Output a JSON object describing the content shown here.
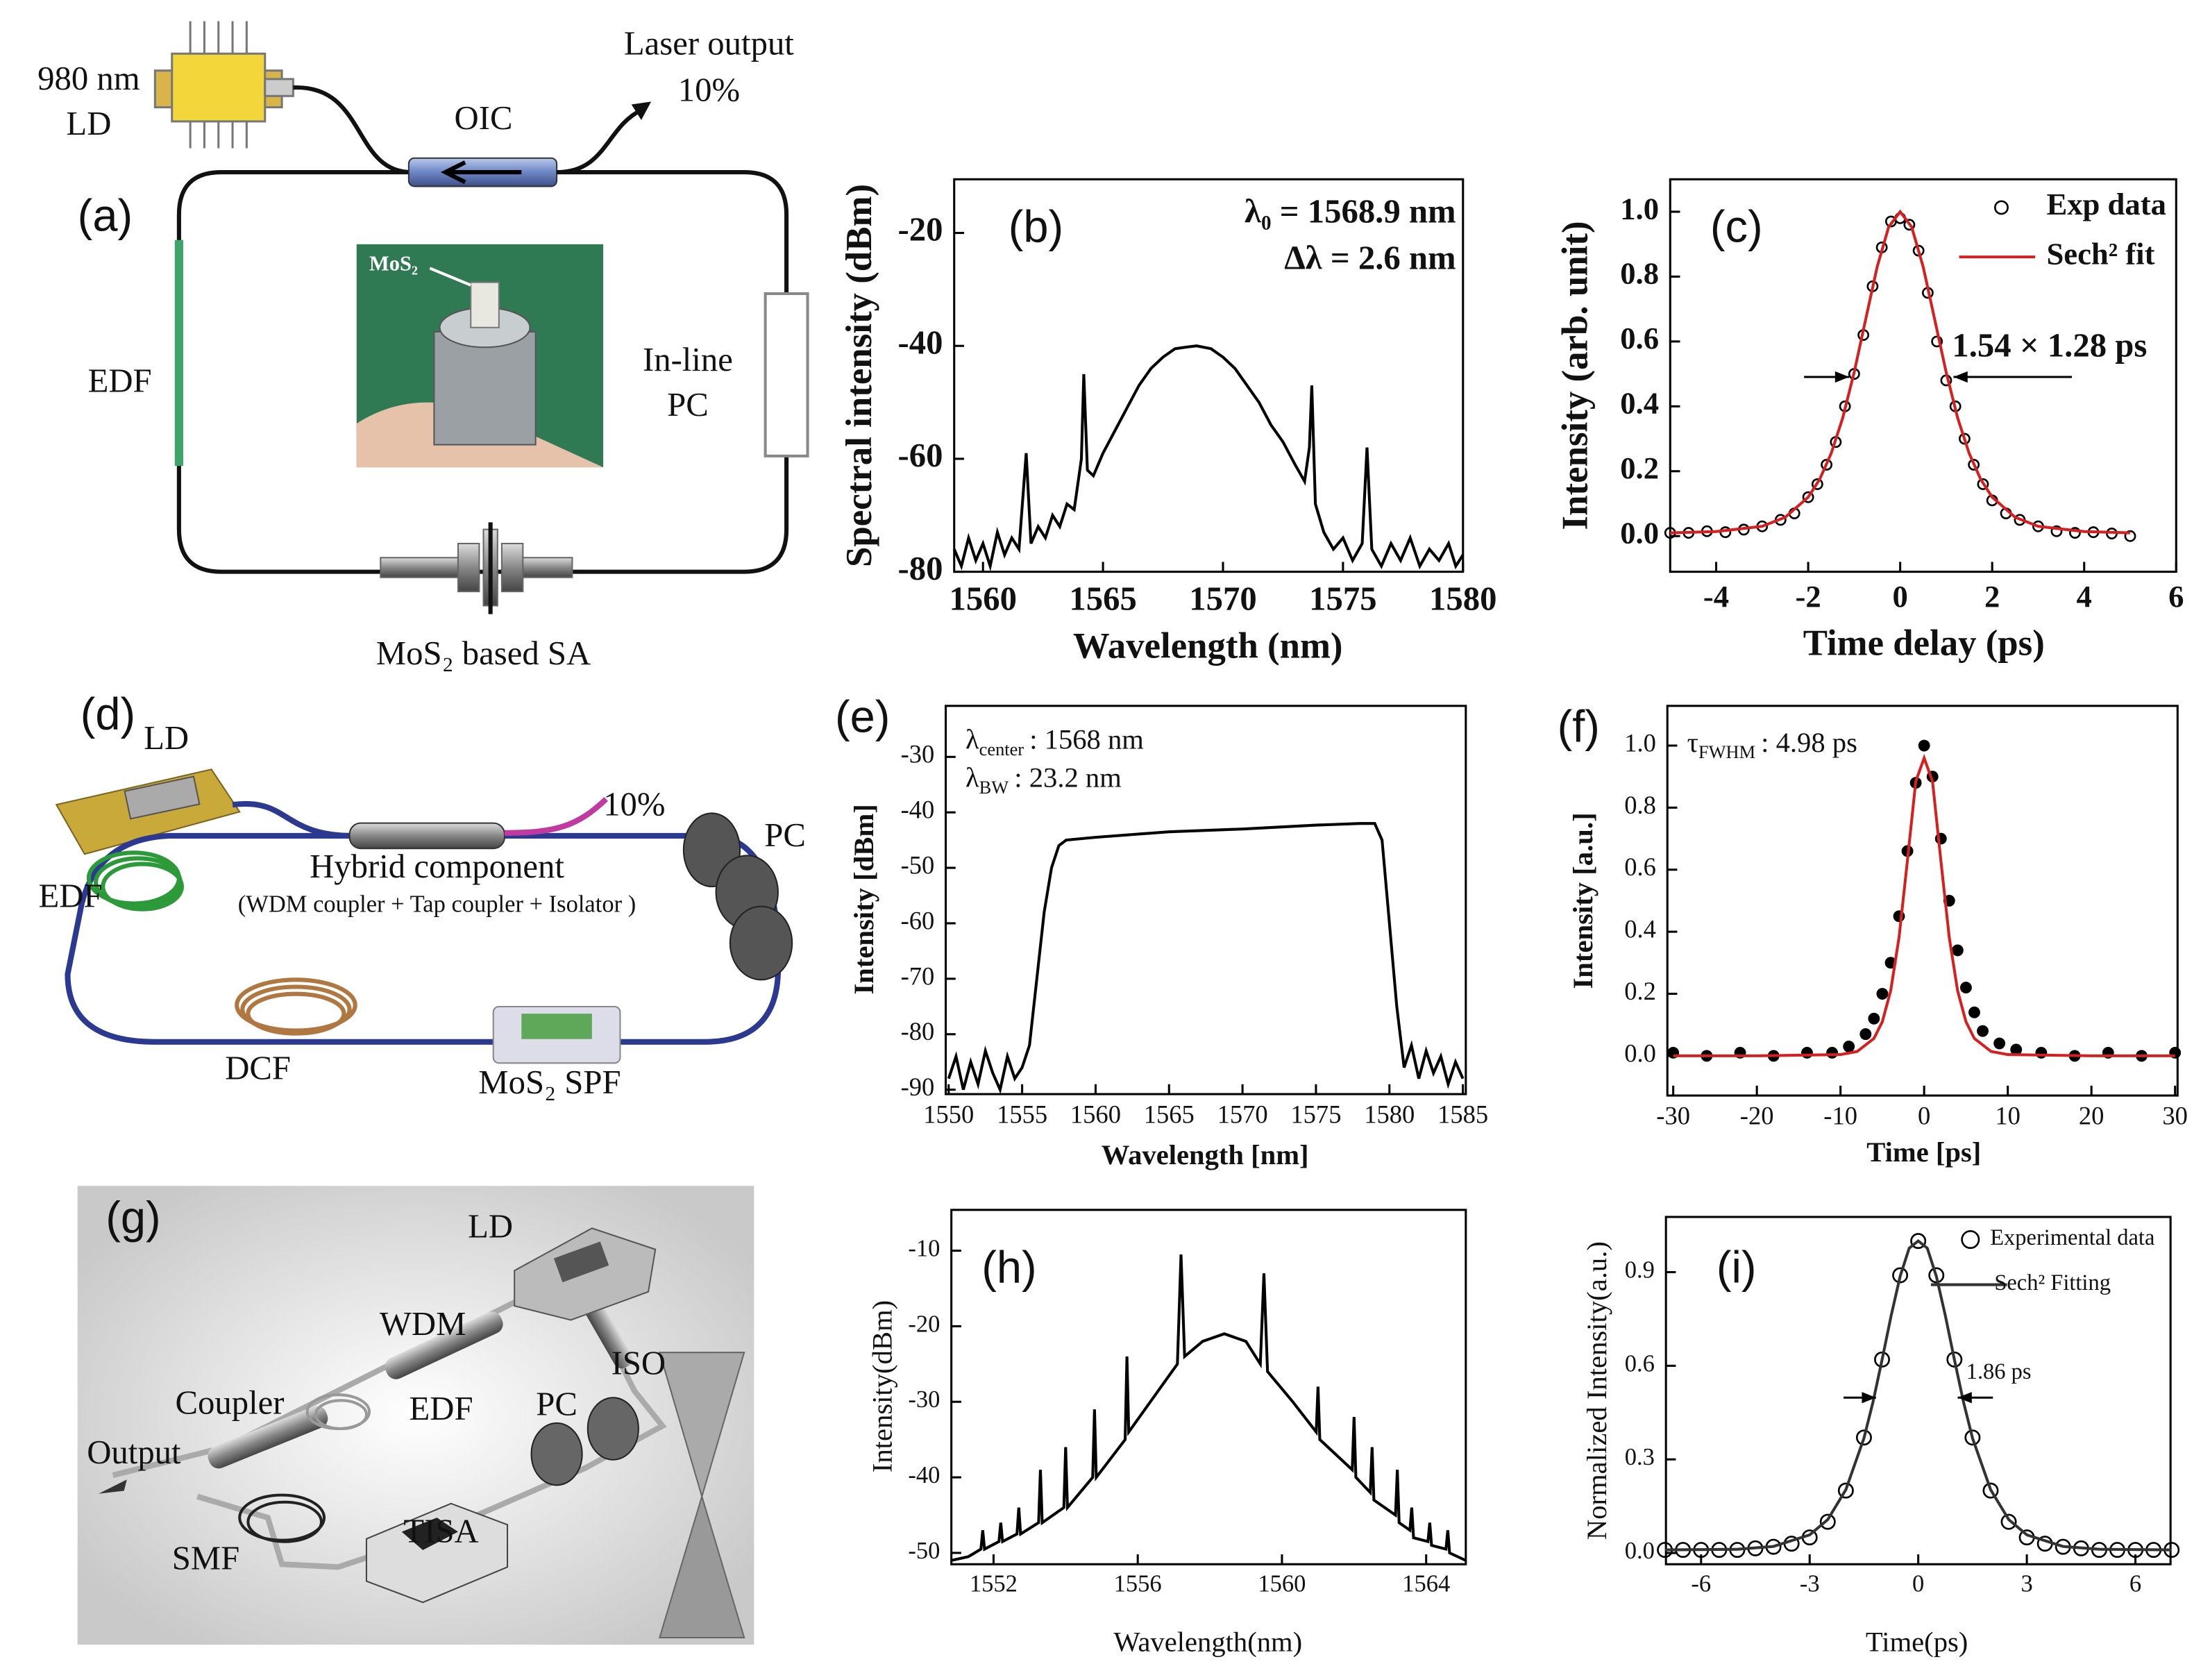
{
  "diagrams": [
    {
      "texts": [
        "(a)",
        "980 nm",
        "LD",
        "Laser output",
        "10%",
        "OIC",
        "MoS₂",
        "EDF",
        "In-line",
        "PC",
        "MoS₂ based SA"
      ]
    },
    {
      "texts": [
        "(d)",
        "LD",
        "10%",
        "PC",
        "Hybrid component",
        "(WDM coupler + Tap coupler + Isolator )",
        "EDF",
        "DCF",
        "MoS₂ SPF"
      ]
    },
    {
      "texts": [
        "(g)",
        "LD",
        "WDM",
        "ISO",
        "Coupler",
        "EDF",
        "PC",
        "Output",
        "TISA",
        "SMF"
      ]
    }
  ],
  "chart_data": [
    {
      "type": "line",
      "panel": "(b)",
      "xlabel": "Wavelength (nm)",
      "ylabel": "Spectral intensity (dBm)",
      "annotations": [
        "λ₀ = 1568.9 nm",
        "Δλ = 2.6 nm"
      ],
      "x": [
        1558.8,
        1559.1,
        1559.4,
        1559.7,
        1560,
        1560.3,
        1560.6,
        1560.9,
        1561.2,
        1561.5,
        1561.8,
        1562.0,
        1562.3,
        1562.6,
        1562.9,
        1563.2,
        1563.5,
        1563.8,
        1564.1,
        1564.2,
        1564.35,
        1564.6,
        1565,
        1565.5,
        1566,
        1566.5,
        1567,
        1567.5,
        1568,
        1568.5,
        1568.9,
        1569.5,
        1570,
        1570.5,
        1571,
        1571.5,
        1572,
        1572.5,
        1573,
        1573.4,
        1573.6,
        1573.7,
        1573.85,
        1574.2,
        1574.6,
        1575,
        1575.4,
        1575.8,
        1576,
        1576.2,
        1576.6,
        1577,
        1577.4,
        1577.8,
        1578.2,
        1578.6,
        1579,
        1579.4,
        1579.7,
        1580
      ],
      "values": [
        -76,
        -79,
        -74,
        -78,
        -75,
        -79,
        -73,
        -77,
        -74,
        -76,
        -59,
        -75,
        -72,
        -74,
        -70,
        -72,
        -68,
        -69,
        -60,
        -45,
        -62,
        -63,
        -59,
        -55,
        -51,
        -47,
        -44,
        -42,
        -40.5,
        -40.2,
        -40,
        -40.5,
        -42,
        -44,
        -47,
        -50,
        -54,
        -57,
        -61,
        -64,
        -58,
        -47,
        -68,
        -73,
        -76,
        -74,
        -78,
        -75,
        -58,
        -76,
        -79,
        -75,
        -78,
        -74,
        -79,
        -76,
        -78,
        -75,
        -79,
        -77
      ],
      "color": "#000000",
      "xlim": [
        1558.8,
        1580
      ],
      "ylim": [
        -80,
        -10.5
      ],
      "xticks": [
        1560,
        1565,
        1570,
        1575,
        1580
      ],
      "yticks": [
        -20,
        -40,
        -60,
        -80
      ]
    },
    {
      "type": "line",
      "panel": "(c)",
      "xlabel": "Time delay (ps)",
      "ylabel": "Intensity (arb. unit)",
      "annotations": [
        "1.54 × 1.28 ps"
      ],
      "legend": "upper right",
      "series": [
        {
          "name": "Exp data",
          "mode": "markers",
          "color": "#000000",
          "x": [
            -5,
            -4.6,
            -4.2,
            -3.8,
            -3.4,
            -3,
            -2.6,
            -2.3,
            -2,
            -1.8,
            -1.6,
            -1.4,
            -1.2,
            -1,
            -0.8,
            -0.6,
            -0.4,
            -0.2,
            0,
            0.2,
            0.4,
            0.6,
            0.8,
            1,
            1.2,
            1.4,
            1.6,
            1.8,
            2,
            2.3,
            2.6,
            3,
            3.4,
            3.8,
            4.2,
            4.6,
            5
          ],
          "values": [
            0.01,
            0.01,
            0.015,
            0.012,
            0.02,
            0.03,
            0.05,
            0.07,
            0.12,
            0.16,
            0.22,
            0.29,
            0.4,
            0.5,
            0.62,
            0.77,
            0.89,
            0.97,
            0.98,
            0.96,
            0.88,
            0.75,
            0.6,
            0.48,
            0.4,
            0.3,
            0.22,
            0.16,
            0.11,
            0.07,
            0.05,
            0.03,
            0.015,
            0.01,
            0.012,
            0.008,
            0.0
          ]
        },
        {
          "name": "Sech² fit",
          "mode": "line",
          "color": "#d62020",
          "x": [
            -5,
            -4,
            -3,
            -2.5,
            -2,
            -1.75,
            -1.5,
            -1.25,
            -1,
            -0.75,
            -0.5,
            -0.25,
            0,
            0.25,
            0.5,
            0.75,
            1,
            1.25,
            1.5,
            1.75,
            2,
            2.5,
            3,
            4,
            5
          ],
          "values": [
            0.01,
            0.014,
            0.03,
            0.058,
            0.12,
            0.175,
            0.255,
            0.364,
            0.505,
            0.668,
            0.83,
            0.953,
            1.0,
            0.953,
            0.83,
            0.668,
            0.505,
            0.364,
            0.255,
            0.175,
            0.12,
            0.058,
            0.03,
            0.014,
            0.01
          ]
        }
      ],
      "xlim": [
        -5,
        6
      ],
      "ylim": [
        -0.11,
        1.1
      ],
      "xticks": [
        -4,
        -2,
        0,
        2,
        4,
        6
      ],
      "yticks": [
        {
          "value": 0,
          "label": "0.0"
        },
        0.2,
        0.4,
        0.6,
        0.8,
        {
          "value": 1,
          "label": "1.0"
        }
      ]
    },
    {
      "type": "line",
      "panel": "(e)",
      "xlabel": "Wavelength [nm]",
      "ylabel": "Intensity [dBm]",
      "annotations": [
        {
          "symbol": "λ",
          "subscript": "center",
          "text": ": 1568 nm"
        },
        {
          "symbol": "λ",
          "subscript": "BW",
          "text": ": 23.2 nm"
        }
      ],
      "x": [
        1550,
        1550.5,
        1551,
        1551.5,
        1552,
        1552.5,
        1553,
        1553.5,
        1554,
        1554.5,
        1555,
        1555.5,
        1556,
        1556.5,
        1557,
        1557.5,
        1558,
        1560,
        1565,
        1570,
        1575,
        1578,
        1579,
        1579.5,
        1580,
        1580.5,
        1581,
        1581.5,
        1582,
        1582.5,
        1583,
        1583.5,
        1584,
        1584.5,
        1585
      ],
      "values": [
        -88,
        -84,
        -90,
        -85,
        -89,
        -83,
        -87,
        -90,
        -84,
        -88,
        -86,
        -82,
        -70,
        -58,
        -50,
        -46,
        -45,
        -44.5,
        -43.5,
        -43,
        -42.3,
        -42,
        -42,
        -45,
        -60,
        -75,
        -86,
        -82,
        -88,
        -83,
        -87,
        -84,
        -89,
        -85,
        -88
      ],
      "color": "#000000",
      "xlim": [
        1549.8,
        1585.2
      ],
      "ylim": [
        -90.8,
        -20.8
      ],
      "xticks": [
        1550,
        1555,
        1560,
        1565,
        1570,
        1575,
        1580,
        1585
      ],
      "yticks": [
        -30,
        -40,
        -50,
        -60,
        -70,
        -80,
        -90
      ]
    },
    {
      "type": "line",
      "panel": "(f)",
      "xlabel": "Time [ps]",
      "ylabel": "Intensity [a.u.]",
      "annotations": [
        {
          "symbol": "τ",
          "subscript": "FWHM",
          "text": ": 4.98 ps"
        }
      ],
      "series": [
        {
          "mode": "markers",
          "color": "#000000",
          "x": [
            -30,
            -26,
            -22,
            -18,
            -14,
            -11,
            -9,
            -7,
            -6,
            -5,
            -4,
            -3,
            -2,
            -1,
            0,
            1,
            2,
            3,
            4,
            5,
            6,
            7,
            9,
            11,
            14,
            18,
            22,
            26,
            30
          ],
          "values": [
            0.01,
            0.0,
            0.01,
            0.0,
            0.01,
            0.01,
            0.03,
            0.07,
            0.12,
            0.2,
            0.3,
            0.45,
            0.66,
            0.88,
            1.0,
            0.9,
            0.7,
            0.5,
            0.34,
            0.22,
            0.14,
            0.08,
            0.04,
            0.02,
            0.01,
            0.0,
            0.01,
            0.0,
            0.01
          ]
        },
        {
          "mode": "line",
          "color": "#d62020",
          "x": [
            -30,
            -20,
            -10,
            -8,
            -6,
            -5,
            -4,
            -3,
            -2,
            -1,
            0,
            1,
            2,
            3,
            4,
            5,
            6,
            8,
            10,
            20,
            30
          ],
          "values": [
            0,
            0,
            0.004,
            0.014,
            0.056,
            0.11,
            0.21,
            0.382,
            0.629,
            0.885,
            0.96,
            0.885,
            0.629,
            0.382,
            0.21,
            0.11,
            0.056,
            0.014,
            0.004,
            0,
            0
          ]
        }
      ],
      "xlim": [
        -30.7,
        30.3
      ],
      "ylim": [
        -0.128,
        1.128
      ],
      "xticks": [
        -30,
        -20,
        -10,
        0,
        10,
        20,
        30
      ],
      "yticks": [
        {
          "value": 0,
          "label": "0.0"
        },
        0.2,
        0.4,
        0.6,
        0.8,
        {
          "value": 1,
          "label": "1.0"
        }
      ]
    },
    {
      "type": "line",
      "panel": "(h)",
      "xlabel": "Wavelength(nm)",
      "ylabel": "Intensity(dBm)",
      "x": [
        1550.83,
        1551.3,
        1551.65,
        1551.7,
        1551.75,
        1552.15,
        1552.2,
        1552.25,
        1552.65,
        1552.7,
        1552.75,
        1553.25,
        1553.3,
        1553.35,
        1553.95,
        1554.0,
        1554.05,
        1554.75,
        1554.8,
        1554.85,
        1555.65,
        1555.7,
        1555.75,
        1556.5,
        1557.1,
        1557.2,
        1557.3,
        1557.8,
        1558.4,
        1559.0,
        1559.4,
        1559.5,
        1559.6,
        1560.3,
        1560.95,
        1561.0,
        1561.05,
        1561.95,
        1562.0,
        1562.05,
        1562.45,
        1562.5,
        1562.55,
        1563.15,
        1563.2,
        1563.25,
        1563.55,
        1563.6,
        1563.65,
        1564.05,
        1564.1,
        1564.15,
        1564.55,
        1564.6,
        1564.65,
        1565.1
      ],
      "values": [
        -51,
        -50.5,
        -49.5,
        -47,
        -49.5,
        -48.5,
        -46,
        -48.5,
        -47.5,
        -44,
        -47.5,
        -46,
        -39,
        -46,
        -44,
        -36,
        -44,
        -40,
        -31,
        -40,
        -35,
        -24,
        -34,
        -29,
        -25,
        -10.5,
        -24,
        -22,
        -21,
        -22,
        -25,
        -13,
        -26,
        -30,
        -34,
        -28,
        -35,
        -39,
        -32,
        -40,
        -42,
        -36,
        -43,
        -45,
        -39,
        -46,
        -47,
        -44,
        -48,
        -48.5,
        -46,
        -49,
        -49.5,
        -47,
        -50,
        -51
      ],
      "color": "#000000",
      "xlim": [
        1550.83,
        1565.1
      ],
      "ylim": [
        -51.5,
        -4.6
      ],
      "xticks": [
        1552,
        1556,
        1560,
        1564
      ],
      "yticks": [
        -10,
        -20,
        -30,
        -40,
        -50
      ]
    },
    {
      "type": "line",
      "panel": "(i)",
      "xlabel": "Time(ps)",
      "ylabel": "Normalized Intensity(a.u.)",
      "annotations": [
        "1.86 ps"
      ],
      "legend": "upper right",
      "series": [
        {
          "name": "Experimental data",
          "mode": "markers",
          "color": "#000000",
          "x": [
            -7,
            -6.5,
            -6,
            -5.5,
            -5,
            -4.5,
            -4,
            -3.5,
            -3,
            -2.5,
            -2,
            -1.5,
            -1,
            -0.5,
            0,
            0.5,
            1,
            1.5,
            2,
            2.5,
            3,
            3.5,
            4,
            4.5,
            5,
            5.5,
            6,
            6.5,
            7
          ],
          "values": [
            0.01,
            0.01,
            0.01,
            0.01,
            0.01,
            0.015,
            0.02,
            0.03,
            0.05,
            0.1,
            0.2,
            0.37,
            0.62,
            0.89,
            1.0,
            0.89,
            0.62,
            0.37,
            0.2,
            0.1,
            0.05,
            0.03,
            0.02,
            0.015,
            0.01,
            0.01,
            0.01,
            0.01,
            0.01
          ]
        },
        {
          "name": "Sech² Fitting",
          "mode": "line",
          "color": "#333333",
          "x": [
            -7,
            -5,
            -4,
            -3,
            -2.5,
            -2,
            -1.5,
            -1.25,
            -1,
            -0.75,
            -0.5,
            -0.25,
            0,
            0.25,
            0.5,
            0.75,
            1,
            1.25,
            1.5,
            2,
            2.5,
            3,
            4,
            5,
            7
          ],
          "values": [
            0.01,
            0.012,
            0.021,
            0.058,
            0.107,
            0.203,
            0.368,
            0.484,
            0.619,
            0.76,
            0.887,
            0.977,
            1.0,
            0.977,
            0.887,
            0.76,
            0.619,
            0.484,
            0.368,
            0.203,
            0.107,
            0.058,
            0.021,
            0.012,
            0.01
          ]
        }
      ],
      "xlim": [
        -6.97,
        6.97
      ],
      "ylim": [
        -0.036,
        1.077
      ],
      "xticks": [
        -6,
        -3,
        0,
        3,
        6
      ],
      "yticks": [
        {
          "value": 0,
          "label": "0.0"
        },
        0.3,
        0.6,
        0.9
      ]
    }
  ]
}
